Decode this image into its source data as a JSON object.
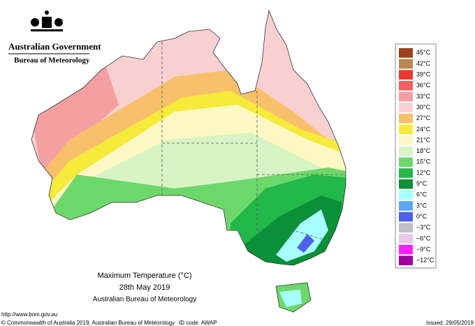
{
  "header": {
    "government": "Australian Government",
    "agency": "Bureau of Meteorology"
  },
  "legend": [
    {
      "label": "45°C",
      "color": "#a0401a"
    },
    {
      "label": "42°C",
      "color": "#b8864e"
    },
    {
      "label": "39°C",
      "color": "#e83a2e"
    },
    {
      "label": "36°C",
      "color": "#f76060"
    },
    {
      "label": "33°C",
      "color": "#f4a0a0"
    },
    {
      "label": "30°C",
      "color": "#f9d0d0"
    },
    {
      "label": "27°C",
      "color": "#f8c06a"
    },
    {
      "label": "24°C",
      "color": "#f6ea3a"
    },
    {
      "label": "21°C",
      "color": "#fbf8c4"
    },
    {
      "label": "18°C",
      "color": "#d8f4c4"
    },
    {
      "label": "15°C",
      "color": "#6cd86c"
    },
    {
      "label": "12°C",
      "color": "#22b84a"
    },
    {
      "label": "9°C",
      "color": "#0a9038"
    },
    {
      "label": "6°C",
      "color": "#a8ffff"
    },
    {
      "label": "3°C",
      "color": "#5aa8f8"
    },
    {
      "label": "0°C",
      "color": "#5060e8"
    },
    {
      "label": "−3°C",
      "color": "#c0c0c8"
    },
    {
      "label": "−6°C",
      "color": "#e8c8e8"
    },
    {
      "label": "−9°C",
      "color": "#ff20ff"
    },
    {
      "label": "−12°C",
      "color": "#a000a0"
    }
  ],
  "caption": {
    "title": "Maximum Temperature (°C)",
    "date": "28th May 2019",
    "source": "Australian Bureau of Meteorology"
  },
  "footer": {
    "url": "http://www.bom.gov.au",
    "copyright": "© Commonwealth of Australia 2019, Australian Bureau of Meteorology",
    "id_code": "ID code: AWAP",
    "issued": "Issued: 29/05/2019"
  }
}
